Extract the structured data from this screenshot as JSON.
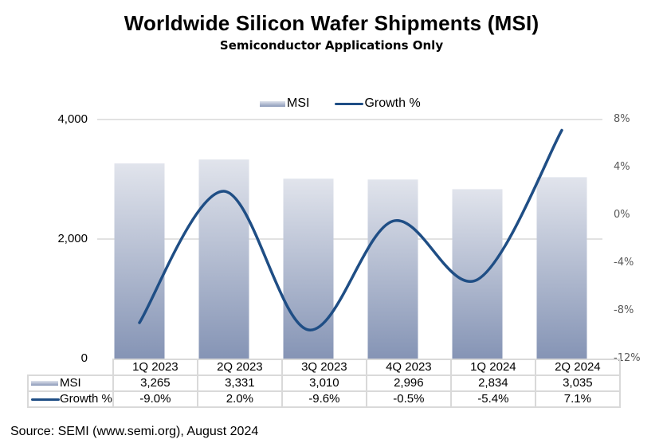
{
  "chart_data": {
    "type": "bar",
    "title": "Worldwide Silicon Wafer Shipments (MSI)",
    "subtitle": "Semiconductor Applications Only",
    "categories": [
      "1Q 2023",
      "2Q 2023",
      "3Q 2023",
      "4Q 2023",
      "1Q 2024",
      "2Q 2024"
    ],
    "series": [
      {
        "name": "MSI",
        "type": "bar",
        "axis": "left",
        "values": [
          3265,
          3331,
          3010,
          2996,
          2834,
          3035
        ],
        "labels": [
          "3,265",
          "3,331",
          "3,010",
          "2,996",
          "2,834",
          "3,035"
        ],
        "color_top": "#e1e4ec",
        "color_bottom": "#8594b5"
      },
      {
        "name": "Growth %",
        "type": "line",
        "axis": "right",
        "values": [
          -9.0,
          2.0,
          -9.6,
          -0.5,
          -5.4,
          7.1
        ],
        "labels": [
          "-9.0%",
          "2.0%",
          "-9.6%",
          "-0.5%",
          "-5.4%",
          "7.1%"
        ],
        "color": "#1f4e85"
      }
    ],
    "y_left": {
      "label": "",
      "range": [
        0,
        4000
      ],
      "ticks": [
        0,
        2000,
        4000
      ],
      "tick_labels": [
        "0",
        "2,000",
        "4,000"
      ]
    },
    "y_right": {
      "label": "",
      "range": [
        -12,
        8
      ],
      "ticks": [
        8,
        4,
        0,
        -4,
        -8,
        -12
      ],
      "tick_labels": [
        "8%",
        "4%",
        "0%",
        "-4%",
        "-8%",
        "-12%"
      ]
    },
    "grid": true,
    "legend": {
      "position": "top",
      "entries": [
        "MSI",
        "Growth %"
      ]
    },
    "data_table": true,
    "source": "Source: SEMI (www.semi.org), August 2024"
  }
}
